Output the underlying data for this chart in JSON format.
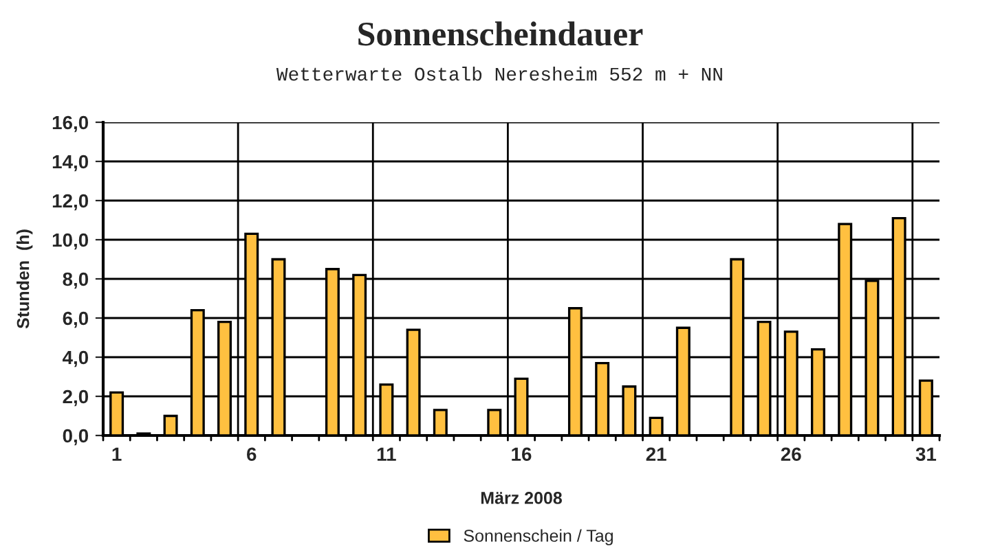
{
  "chart_data": {
    "type": "bar",
    "title": "Sonnenscheindauer",
    "subtitle": "Wetterwarte Ostalb Neresheim 552 m + NN",
    "xlabel": "März 2008",
    "ylabel": "Stunden  (h)",
    "categories": [
      "1",
      null,
      null,
      null,
      null,
      "6",
      null,
      null,
      null,
      null,
      "11",
      null,
      null,
      null,
      null,
      "16",
      null,
      null,
      null,
      null,
      "21",
      null,
      null,
      null,
      null,
      "26",
      null,
      null,
      null,
      null,
      "31"
    ],
    "series": [
      {
        "name": "Sonnenschein / Tag",
        "color": "#ffc040",
        "values": [
          2.2,
          0.1,
          1.0,
          6.4,
          5.8,
          10.3,
          9.0,
          null,
          8.5,
          8.2,
          2.6,
          5.4,
          1.3,
          null,
          1.3,
          2.9,
          null,
          6.5,
          3.7,
          2.5,
          0.9,
          5.5,
          null,
          9.0,
          5.8,
          5.3,
          4.4,
          10.8,
          7.9,
          11.1,
          2.8
        ]
      }
    ],
    "ylim": [
      0,
      16
    ],
    "yticks": [
      {
        "value": 0,
        "label": "0,0"
      },
      {
        "value": 2,
        "label": "2,0"
      },
      {
        "value": 4,
        "label": "4,0"
      },
      {
        "value": 6,
        "label": "6,0"
      },
      {
        "value": 8,
        "label": "8,0"
      },
      {
        "value": 10,
        "label": "10,0"
      },
      {
        "value": 12,
        "label": "12,0"
      },
      {
        "value": 14,
        "label": "14,0"
      },
      {
        "value": 16,
        "label": "16,0"
      }
    ],
    "grid": true,
    "legend": "bottom"
  }
}
